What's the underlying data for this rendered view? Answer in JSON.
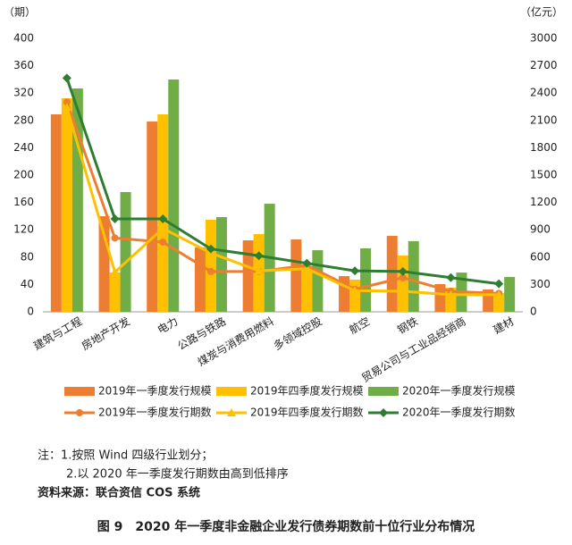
{
  "chart_data": {
    "type": "bar-line",
    "y_label": "（期）",
    "y2_label": "（亿元）",
    "categories": [
      "建筑与工程",
      "房地产开发",
      "电力",
      "公路与铁路",
      "煤炭与消费用燃料",
      "多领域控股",
      "航空",
      "钢铁",
      "贸易公司与工业品经销商",
      "建材"
    ],
    "ylim": [
      0,
      400
    ],
    "yticks": [
      0,
      40,
      80,
      120,
      160,
      200,
      240,
      280,
      320,
      360,
      400
    ],
    "y2lim": [
      0,
      3000
    ],
    "y2ticks": [
      0,
      300,
      600,
      900,
      1200,
      1500,
      1800,
      2100,
      2400,
      2700,
      3000
    ],
    "series": [
      {
        "name": "2019年一季度发行规模",
        "kind": "bar",
        "axis": "y2",
        "color": "#ed7d31",
        "values": [
          2167,
          1049,
          2088,
          706,
          784,
          794,
          392,
          833,
          304,
          245
        ]
      },
      {
        "name": "2019年四季度发行规模",
        "kind": "bar",
        "axis": "y2",
        "color": "#ffc000",
        "values": [
          2343,
          431,
          2167,
          1010,
          853,
          500,
          353,
          618,
          265,
          206
        ]
      },
      {
        "name": "2020年一季度发行规模",
        "kind": "bar",
        "axis": "y2",
        "color": "#70ad47",
        "values": [
          2451,
          1314,
          2549,
          1039,
          1186,
          676,
          696,
          775,
          431,
          382
        ]
      },
      {
        "name": "2019年一季度发行期数",
        "kind": "line",
        "marker": "circle",
        "color": "#ed7d31",
        "values": [
          307,
          108,
          102,
          59,
          59,
          68,
          33,
          50,
          30,
          27
        ]
      },
      {
        "name": "2019年四季度发行期数",
        "kind": "line",
        "marker": "triangle",
        "color": "#ffc000",
        "values": [
          299,
          58,
          122,
          86,
          60,
          63,
          31,
          30,
          25,
          25
        ]
      },
      {
        "name": "2020年一季度发行期数",
        "kind": "line",
        "marker": "diamond",
        "color": "#2e7d32",
        "values": [
          342,
          136,
          136,
          92,
          82,
          71,
          60,
          59,
          50,
          41
        ]
      }
    ]
  },
  "notes": [
    "注：1.按照 Wind 四级行业划分；",
    "2.以 2020 年一季度发行期数由高到低排序"
  ],
  "source": "资料来源：联合资信 COS 系统",
  "caption": "图 9　2020 年一季度非金融企业发行债券期数前十位行业分布情况"
}
